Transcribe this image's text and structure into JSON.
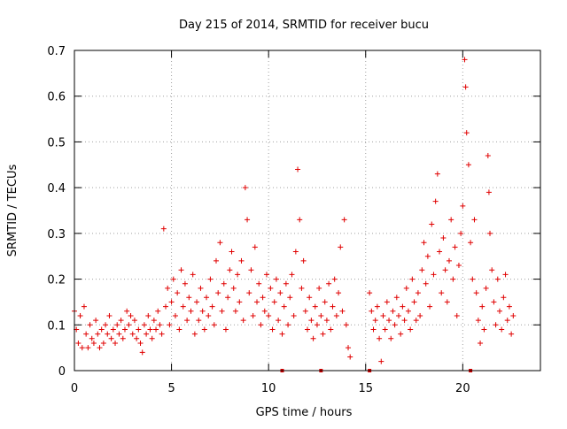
{
  "chart_data": {
    "type": "scatter",
    "title": "Day 215 of 2014, SRMTID for receiver bucu",
    "xlabel": "GPS time / hours",
    "ylabel": "SRMTID / TECUs",
    "xlim": [
      0,
      24
    ],
    "ylim": [
      0,
      0.7
    ],
    "grid": true,
    "x_ticks": [
      0,
      5,
      10,
      15,
      20
    ],
    "x_tick_labels": [
      "0",
      "5",
      "10",
      "15",
      "20"
    ],
    "y_ticks": [
      0,
      0.1,
      0.2,
      0.3,
      0.4,
      0.5,
      0.6,
      0.7
    ],
    "y_tick_labels": [
      "0",
      "0.1",
      "0.2",
      "0.3",
      "0.4",
      "0.5",
      "0.6",
      "0.7"
    ],
    "marker": "+",
    "color": "#e00000",
    "series": [
      {
        "name": "SRMTID",
        "points": [
          [
            0.0,
            0.13
          ],
          [
            0.1,
            0.09
          ],
          [
            0.2,
            0.06
          ],
          [
            0.3,
            0.12
          ],
          [
            0.4,
            0.05
          ],
          [
            0.5,
            0.14
          ],
          [
            0.6,
            0.08
          ],
          [
            0.7,
            0.05
          ],
          [
            0.8,
            0.1
          ],
          [
            0.9,
            0.07
          ],
          [
            1.0,
            0.06
          ],
          [
            1.1,
            0.11
          ],
          [
            1.2,
            0.08
          ],
          [
            1.3,
            0.05
          ],
          [
            1.4,
            0.09
          ],
          [
            1.5,
            0.06
          ],
          [
            1.6,
            0.1
          ],
          [
            1.7,
            0.08
          ],
          [
            1.8,
            0.12
          ],
          [
            1.9,
            0.07
          ],
          [
            2.0,
            0.09
          ],
          [
            2.1,
            0.06
          ],
          [
            2.2,
            0.1
          ],
          [
            2.3,
            0.08
          ],
          [
            2.4,
            0.11
          ],
          [
            2.5,
            0.07
          ],
          [
            2.6,
            0.09
          ],
          [
            2.7,
            0.13
          ],
          [
            2.8,
            0.1
          ],
          [
            2.9,
            0.12
          ],
          [
            3.0,
            0.08
          ],
          [
            3.1,
            0.11
          ],
          [
            3.2,
            0.07
          ],
          [
            3.3,
            0.09
          ],
          [
            3.4,
            0.06
          ],
          [
            3.5,
            0.04
          ],
          [
            3.6,
            0.1
          ],
          [
            3.7,
            0.08
          ],
          [
            3.8,
            0.12
          ],
          [
            3.9,
            0.09
          ],
          [
            4.0,
            0.07
          ],
          [
            4.1,
            0.11
          ],
          [
            4.2,
            0.09
          ],
          [
            4.3,
            0.13
          ],
          [
            4.4,
            0.1
          ],
          [
            4.5,
            0.08
          ],
          [
            4.6,
            0.31
          ],
          [
            4.7,
            0.14
          ],
          [
            4.8,
            0.18
          ],
          [
            4.9,
            0.1
          ],
          [
            5.0,
            0.15
          ],
          [
            5.1,
            0.2
          ],
          [
            5.2,
            0.12
          ],
          [
            5.3,
            0.17
          ],
          [
            5.4,
            0.09
          ],
          [
            5.5,
            0.22
          ],
          [
            5.6,
            0.14
          ],
          [
            5.7,
            0.19
          ],
          [
            5.8,
            0.11
          ],
          [
            5.9,
            0.16
          ],
          [
            6.0,
            0.13
          ],
          [
            6.1,
            0.21
          ],
          [
            6.2,
            0.08
          ],
          [
            6.3,
            0.15
          ],
          [
            6.4,
            0.11
          ],
          [
            6.5,
            0.18
          ],
          [
            6.6,
            0.13
          ],
          [
            6.7,
            0.09
          ],
          [
            6.8,
            0.16
          ],
          [
            6.9,
            0.12
          ],
          [
            7.0,
            0.2
          ],
          [
            7.1,
            0.14
          ],
          [
            7.2,
            0.1
          ],
          [
            7.3,
            0.24
          ],
          [
            7.4,
            0.17
          ],
          [
            7.5,
            0.28
          ],
          [
            7.6,
            0.13
          ],
          [
            7.7,
            0.19
          ],
          [
            7.8,
            0.09
          ],
          [
            7.9,
            0.16
          ],
          [
            8.0,
            0.22
          ],
          [
            8.1,
            0.26
          ],
          [
            8.2,
            0.18
          ],
          [
            8.3,
            0.13
          ],
          [
            8.4,
            0.21
          ],
          [
            8.5,
            0.15
          ],
          [
            8.6,
            0.24
          ],
          [
            8.7,
            0.11
          ],
          [
            8.8,
            0.4
          ],
          [
            8.9,
            0.33
          ],
          [
            9.0,
            0.17
          ],
          [
            9.1,
            0.22
          ],
          [
            9.2,
            0.12
          ],
          [
            9.3,
            0.27
          ],
          [
            9.4,
            0.15
          ],
          [
            9.5,
            0.19
          ],
          [
            9.6,
            0.1
          ],
          [
            9.7,
            0.16
          ],
          [
            9.8,
            0.13
          ],
          [
            9.9,
            0.21
          ],
          [
            10.0,
            0.12
          ],
          [
            10.1,
            0.18
          ],
          [
            10.2,
            0.09
          ],
          [
            10.3,
            0.15
          ],
          [
            10.4,
            0.2
          ],
          [
            10.5,
            0.11
          ],
          [
            10.6,
            0.17
          ],
          [
            10.7,
            0.08
          ],
          [
            10.8,
            0.14
          ],
          [
            10.9,
            0.19
          ],
          [
            11.0,
            0.1
          ],
          [
            11.1,
            0.16
          ],
          [
            11.2,
            0.21
          ],
          [
            11.3,
            0.12
          ],
          [
            11.4,
            0.26
          ],
          [
            11.5,
            0.44
          ],
          [
            11.6,
            0.33
          ],
          [
            11.7,
            0.18
          ],
          [
            11.8,
            0.24
          ],
          [
            11.9,
            0.13
          ],
          [
            12.0,
            0.09
          ],
          [
            12.1,
            0.16
          ],
          [
            12.2,
            0.11
          ],
          [
            12.3,
            0.07
          ],
          [
            12.4,
            0.14
          ],
          [
            12.5,
            0.1
          ],
          [
            12.6,
            0.18
          ],
          [
            12.7,
            0.12
          ],
          [
            12.8,
            0.08
          ],
          [
            12.9,
            0.15
          ],
          [
            13.0,
            0.11
          ],
          [
            13.1,
            0.19
          ],
          [
            13.2,
            0.09
          ],
          [
            13.3,
            0.14
          ],
          [
            13.4,
            0.2
          ],
          [
            13.5,
            0.12
          ],
          [
            13.6,
            0.17
          ],
          [
            13.7,
            0.27
          ],
          [
            13.8,
            0.13
          ],
          [
            13.9,
            0.33
          ],
          [
            14.0,
            0.1
          ],
          [
            14.1,
            0.05
          ],
          [
            14.2,
            0.03
          ],
          [
            15.2,
            0.17
          ],
          [
            15.3,
            0.13
          ],
          [
            15.4,
            0.09
          ],
          [
            15.5,
            0.11
          ],
          [
            15.6,
            0.14
          ],
          [
            15.7,
            0.07
          ],
          [
            15.8,
            0.02
          ],
          [
            15.9,
            0.12
          ],
          [
            16.0,
            0.09
          ],
          [
            16.1,
            0.15
          ],
          [
            16.2,
            0.11
          ],
          [
            16.3,
            0.07
          ],
          [
            16.4,
            0.13
          ],
          [
            16.5,
            0.1
          ],
          [
            16.6,
            0.16
          ],
          [
            16.7,
            0.12
          ],
          [
            16.8,
            0.08
          ],
          [
            16.9,
            0.14
          ],
          [
            17.0,
            0.11
          ],
          [
            17.1,
            0.18
          ],
          [
            17.2,
            0.13
          ],
          [
            17.3,
            0.09
          ],
          [
            17.4,
            0.2
          ],
          [
            17.5,
            0.15
          ],
          [
            17.6,
            0.11
          ],
          [
            17.7,
            0.17
          ],
          [
            17.8,
            0.12
          ],
          [
            17.9,
            0.22
          ],
          [
            18.0,
            0.28
          ],
          [
            18.1,
            0.19
          ],
          [
            18.2,
            0.25
          ],
          [
            18.3,
            0.14
          ],
          [
            18.4,
            0.32
          ],
          [
            18.5,
            0.21
          ],
          [
            18.6,
            0.37
          ],
          [
            18.7,
            0.43
          ],
          [
            18.8,
            0.26
          ],
          [
            18.9,
            0.17
          ],
          [
            19.0,
            0.29
          ],
          [
            19.1,
            0.22
          ],
          [
            19.2,
            0.15
          ],
          [
            19.3,
            0.24
          ],
          [
            19.4,
            0.33
          ],
          [
            19.5,
            0.2
          ],
          [
            19.6,
            0.27
          ],
          [
            19.7,
            0.12
          ],
          [
            19.8,
            0.23
          ],
          [
            19.9,
            0.3
          ],
          [
            20.0,
            0.36
          ],
          [
            20.1,
            0.68
          ],
          [
            20.15,
            0.62
          ],
          [
            20.2,
            0.52
          ],
          [
            20.3,
            0.45
          ],
          [
            20.4,
            0.28
          ],
          [
            20.5,
            0.2
          ],
          [
            20.6,
            0.33
          ],
          [
            20.7,
            0.17
          ],
          [
            20.8,
            0.11
          ],
          [
            20.9,
            0.06
          ],
          [
            21.0,
            0.14
          ],
          [
            21.1,
            0.09
          ],
          [
            21.2,
            0.18
          ],
          [
            21.3,
            0.47
          ],
          [
            21.35,
            0.39
          ],
          [
            21.4,
            0.3
          ],
          [
            21.5,
            0.22
          ],
          [
            21.6,
            0.15
          ],
          [
            21.7,
            0.1
          ],
          [
            21.8,
            0.2
          ],
          [
            21.9,
            0.13
          ],
          [
            22.0,
            0.09
          ],
          [
            22.1,
            0.16
          ],
          [
            22.2,
            0.21
          ],
          [
            22.3,
            0.11
          ],
          [
            22.4,
            0.14
          ],
          [
            22.5,
            0.08
          ],
          [
            22.6,
            0.12
          ]
        ]
      }
    ],
    "baseline_markers": [
      10.7,
      12.7,
      15.2,
      20.4
    ]
  }
}
